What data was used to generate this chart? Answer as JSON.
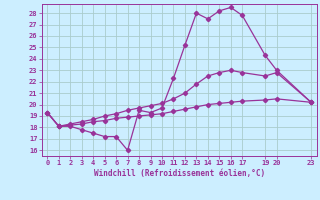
{
  "xlabel": "Windchill (Refroidissement éolien,°C)",
  "bg_color": "#cceeff",
  "grid_color": "#aacccc",
  "line_color": "#993399",
  "ylim": [
    15.5,
    28.8
  ],
  "xlim": [
    -0.5,
    23.5
  ],
  "yticks": [
    16,
    17,
    18,
    19,
    20,
    21,
    22,
    23,
    24,
    25,
    26,
    27,
    28
  ],
  "xticks": [
    0,
    1,
    2,
    3,
    4,
    5,
    6,
    7,
    8,
    9,
    10,
    11,
    12,
    13,
    14,
    15,
    16,
    17,
    19,
    20,
    23
  ],
  "xtick_labels": [
    "0",
    "1",
    "2",
    "3",
    "4",
    "5",
    "6",
    "7",
    "8",
    "9",
    "10",
    "11",
    "12",
    "13",
    "14",
    "15",
    "16",
    "17",
    "19",
    "20",
    "23"
  ],
  "series1_x": [
    0,
    1,
    2,
    3,
    4,
    5,
    6,
    7,
    8,
    9,
    10,
    11,
    12,
    13,
    14,
    15,
    16,
    17,
    19,
    20,
    23
  ],
  "series1_y": [
    19.3,
    18.1,
    18.1,
    17.8,
    17.5,
    17.2,
    17.2,
    16.0,
    19.5,
    19.3,
    19.7,
    22.3,
    25.2,
    28.0,
    27.5,
    28.2,
    28.5,
    27.8,
    24.3,
    23.0,
    20.2
  ],
  "series2_x": [
    0,
    1,
    2,
    3,
    4,
    5,
    6,
    7,
    8,
    9,
    10,
    11,
    12,
    13,
    14,
    15,
    16,
    17,
    19,
    20,
    23
  ],
  "series2_y": [
    19.3,
    18.1,
    18.3,
    18.5,
    18.7,
    19.0,
    19.2,
    19.5,
    19.7,
    19.9,
    20.1,
    20.5,
    21.0,
    21.8,
    22.5,
    22.8,
    23.0,
    22.8,
    22.5,
    22.8,
    20.2
  ],
  "series3_x": [
    0,
    1,
    2,
    3,
    4,
    5,
    6,
    7,
    8,
    9,
    10,
    11,
    12,
    13,
    14,
    15,
    16,
    17,
    19,
    20,
    23
  ],
  "series3_y": [
    19.3,
    18.1,
    18.2,
    18.3,
    18.5,
    18.6,
    18.8,
    18.9,
    19.0,
    19.1,
    19.2,
    19.4,
    19.6,
    19.8,
    20.0,
    20.1,
    20.2,
    20.3,
    20.4,
    20.5,
    20.2
  ]
}
